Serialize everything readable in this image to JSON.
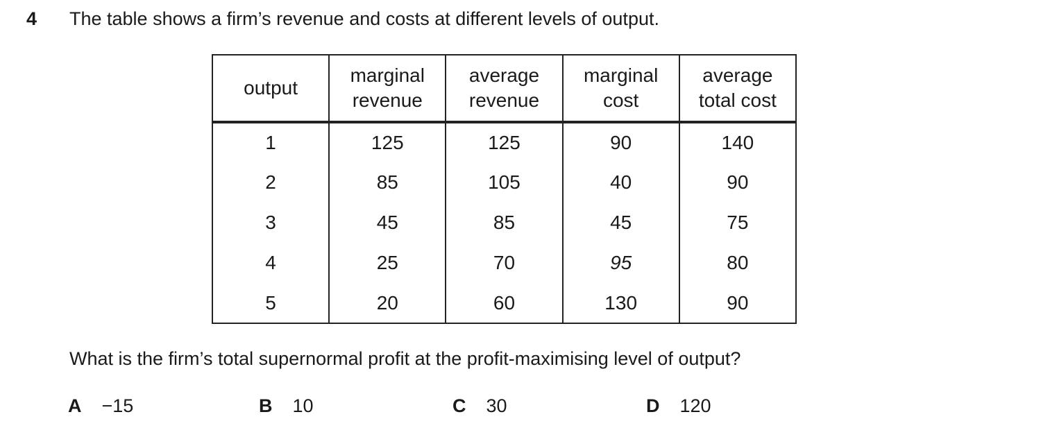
{
  "question": {
    "number": "4",
    "intro": "The table shows a firm’s revenue and costs at different levels of output.",
    "prompt": "What is the firm’s total supernormal profit at the profit-maximising level of output?"
  },
  "table": {
    "headers": [
      "output",
      "marginal\nrevenue",
      "average\nrevenue",
      "marginal\ncost",
      "average\ntotal cost"
    ],
    "rows": [
      [
        "1",
        "125",
        "125",
        "90",
        "140"
      ],
      [
        "2",
        "85",
        "105",
        "40",
        "90"
      ],
      [
        "3",
        "45",
        "85",
        "45",
        "75"
      ],
      [
        "4",
        "25",
        "70",
        "95",
        "80"
      ],
      [
        "5",
        "20",
        "60",
        "130",
        "90"
      ]
    ]
  },
  "options": [
    {
      "letter": "A",
      "value": "−15"
    },
    {
      "letter": "B",
      "value": "10"
    },
    {
      "letter": "C",
      "value": "30"
    },
    {
      "letter": "D",
      "value": "120"
    }
  ],
  "colors": {
    "background": "#ffffff",
    "text": "#1a1a1a",
    "border": "#222222"
  }
}
